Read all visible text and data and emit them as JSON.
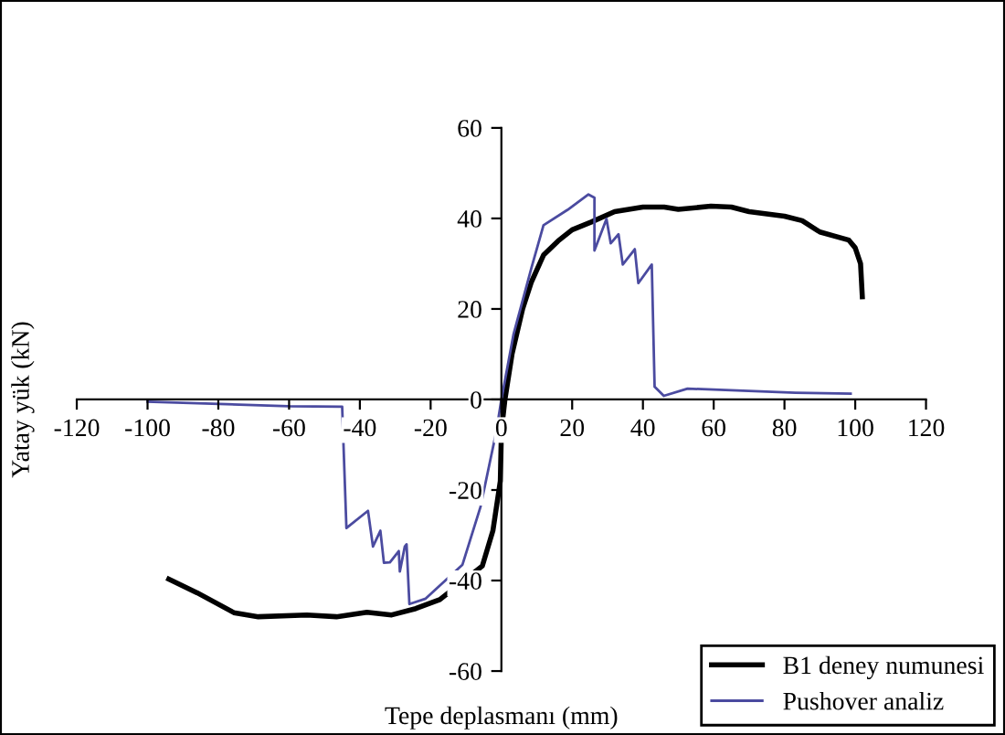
{
  "chart_data": {
    "type": "line",
    "xlabel": "Tepe deplasmanı (mm)",
    "ylabel": "Yatay yük (kN)",
    "xlim": [
      -120,
      120
    ],
    "ylim": [
      -60,
      60
    ],
    "xticks": [
      -120,
      -100,
      -80,
      -60,
      -40,
      -20,
      0,
      20,
      40,
      60,
      80,
      100,
      120
    ],
    "yticks": [
      -60,
      -40,
      -20,
      0,
      20,
      40,
      60
    ],
    "grid": false,
    "legend": "bottom right",
    "marker": "none",
    "line_style": "solid",
    "series": [
      {
        "name": "B1 deney numunesi",
        "color": "#000000",
        "x": [
          -94,
          -86,
          -75.6,
          -68.7,
          -55,
          -46.6,
          -38,
          -31,
          -24.2,
          -17.4,
          -5.4,
          -2.4,
          -0.3,
          0,
          1,
          3,
          6,
          8.5,
          11.9,
          16,
          20,
          25.4,
          32,
          40,
          46,
          50,
          59.2,
          65,
          70,
          80,
          85,
          90,
          98.2,
          100,
          101.5,
          102
        ],
        "values": [
          -39.7,
          -42.7,
          -47.1,
          -48,
          -47.6,
          -48,
          -47,
          -47.6,
          -46.2,
          -44.2,
          -36.8,
          -29,
          -18,
          -7,
          0,
          10,
          20,
          26,
          31.9,
          35,
          37.5,
          39.2,
          41.5,
          42.5,
          42.5,
          42,
          42.7,
          42.5,
          41.5,
          40.5,
          39.5,
          37,
          35.2,
          33.5,
          30,
          22.7
        ]
      },
      {
        "name": "Pushover analiz",
        "color": "#4b4ba0",
        "x": [
          -100,
          -60,
          -45,
          -43.8,
          -37.7,
          -36.3,
          -34.2,
          -33.2,
          -31.5,
          -29,
          -28.7,
          -27.3,
          -26.8,
          -26,
          -21.4,
          -11,
          -5.9,
          -1.5,
          0,
          3.4,
          8.5,
          11.9,
          18.7,
          24.6,
          26.3,
          26.3,
          29.7,
          30.9,
          33.1,
          34.3,
          37.7,
          38.7,
          42.5,
          43.3,
          45.9,
          52.6,
          83.1,
          98.7
        ],
        "values": [
          -0.5,
          -1.5,
          -1.6,
          -28.4,
          -24.6,
          -32.5,
          -29,
          -36.1,
          -36,
          -33.5,
          -38,
          -32.5,
          -32,
          -45.2,
          -44,
          -36.5,
          -23.7,
          -7.3,
          0,
          14.3,
          29.1,
          38.5,
          41.9,
          45.3,
          44.6,
          32.9,
          39.9,
          34.5,
          36.5,
          29.8,
          33.2,
          25.7,
          29.8,
          2.8,
          0.8,
          2.4,
          1.5,
          1.3
        ]
      }
    ]
  }
}
